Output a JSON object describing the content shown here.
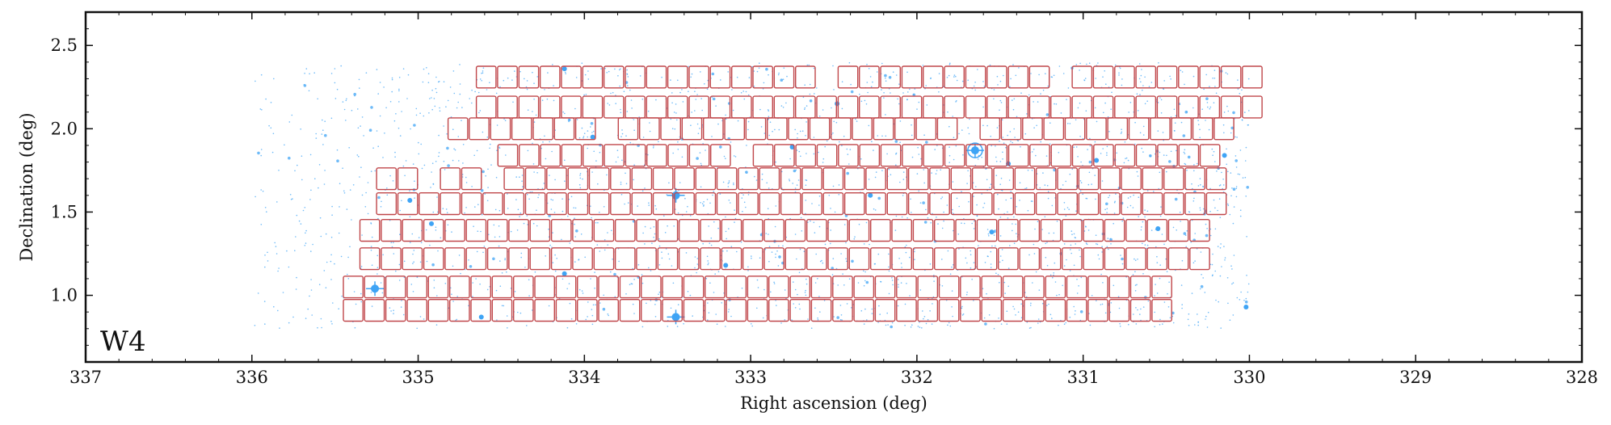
{
  "chart_data": {
    "type": "scatter",
    "title": "",
    "field_label": "W4",
    "xlabel": "Right ascension (deg)",
    "ylabel": "Declination (deg)",
    "xlim": [
      337,
      328
    ],
    "ylim": [
      0.6,
      2.7
    ],
    "x_inverted": true,
    "xticks": [
      "337",
      "336",
      "335",
      "334",
      "333",
      "332",
      "331",
      "330",
      "329",
      "328"
    ],
    "yticks": [
      "1.0",
      "1.5",
      "2.0",
      "2.5"
    ],
    "grid": false,
    "legend": "none",
    "colors": {
      "points": "#3fa4f5",
      "pointings": "#c0464a",
      "axes": "#111111"
    },
    "stars": [
      {
        "ra": 335.26,
        "dec": 1.04
      },
      {
        "ra": 333.45,
        "dec": 1.6
      },
      {
        "ra": 333.45,
        "dec": 0.87
      },
      {
        "ra": 331.65,
        "dec": 1.87
      },
      {
        "ra": 332.48,
        "dec": 2.15
      },
      {
        "ra": 334.62,
        "dec": 0.87
      },
      {
        "ra": 333.15,
        "dec": 1.18
      },
      {
        "ra": 334.12,
        "dec": 1.13
      },
      {
        "ra": 332.28,
        "dec": 1.6
      },
      {
        "ra": 331.45,
        "dec": 1.79
      },
      {
        "ra": 330.02,
        "dec": 0.93
      },
      {
        "ra": 335.05,
        "dec": 1.57
      },
      {
        "ra": 334.92,
        "dec": 1.43
      },
      {
        "ra": 333.95,
        "dec": 1.95
      },
      {
        "ra": 330.92,
        "dec": 1.81
      },
      {
        "ra": 330.15,
        "dec": 1.84
      },
      {
        "ra": 331.55,
        "dec": 1.38
      },
      {
        "ra": 332.75,
        "dec": 1.89
      },
      {
        "ra": 334.12,
        "dec": 2.36
      },
      {
        "ra": 330.55,
        "dec": 1.4
      }
    ],
    "pointing_rows": [
      {
        "dec": 2.31,
        "ra_start": 334.65,
        "ra_end": 330.02,
        "skip": [
          332.62,
          331.25
        ]
      },
      {
        "dec": 2.13,
        "ra_start": 334.65,
        "ra_end": 330.02,
        "skip": []
      },
      {
        "dec": 2.0,
        "ra_start": 334.82,
        "ra_end": 330.18,
        "skip": [
          333.9,
          331.8
        ]
      },
      {
        "dec": 1.84,
        "ra_start": 334.52,
        "ra_end": 330.18,
        "skip": [
          333.1
        ]
      },
      {
        "dec": 1.7,
        "ra_start": 335.25,
        "ra_end": 330.18,
        "skip": [
          335.05,
          334.6
        ]
      },
      {
        "dec": 1.55,
        "ra_start": 335.25,
        "ra_end": 330.18,
        "skip": []
      },
      {
        "dec": 1.39,
        "ra_start": 335.35,
        "ra_end": 330.32,
        "skip": []
      },
      {
        "dec": 1.22,
        "ra_start": 335.35,
        "ra_end": 330.32,
        "skip": []
      },
      {
        "dec": 1.05,
        "ra_start": 335.45,
        "ra_end": 330.48,
        "skip": []
      },
      {
        "dec": 0.91,
        "ra_start": 335.45,
        "ra_end": 330.48,
        "skip": []
      }
    ]
  }
}
